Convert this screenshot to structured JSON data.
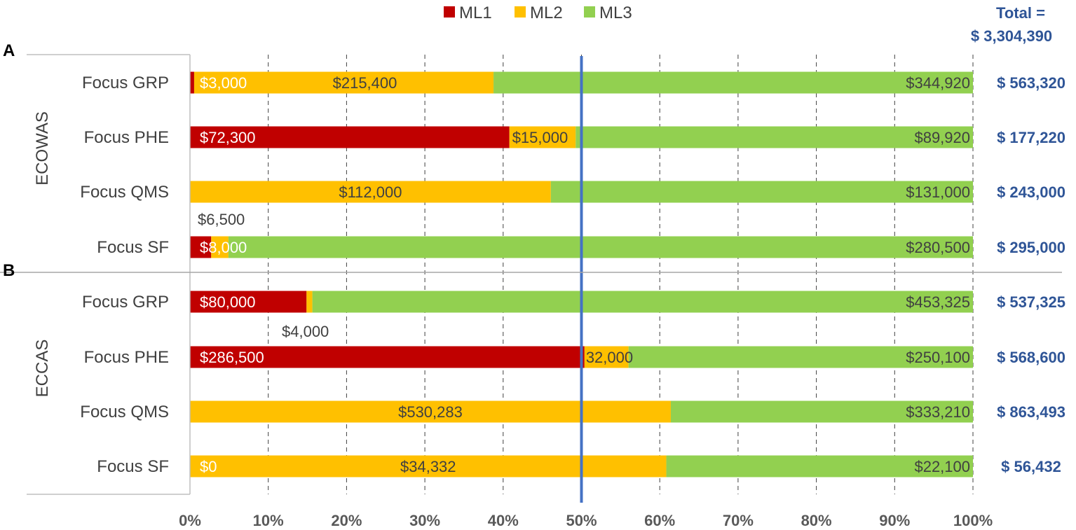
{
  "chart_data": {
    "type": "bar",
    "orientation": "horizontal",
    "stacking": "percent",
    "colors": {
      "ML1": "#c00000",
      "ML2": "#ffc000",
      "ML3": "#92d050",
      "reference_line": "#4472c4",
      "totals": "#2f5597"
    },
    "legend": {
      "position": "top",
      "entries": [
        "ML1",
        "ML2",
        "ML3"
      ]
    },
    "series_names": [
      "ML1",
      "ML2",
      "ML3"
    ],
    "xlim": [
      0,
      100
    ],
    "x_ticks": [
      "0%",
      "10%",
      "20%",
      "30%",
      "40%",
      "50%",
      "60%",
      "70%",
      "80%",
      "90%",
      "100%"
    ],
    "grid": "vertical-dashed",
    "reference_line_at": 50,
    "total_header": [
      "Total =",
      "$ 3,304,390"
    ],
    "panels": [
      {
        "letter": "A",
        "group": "ECOWAS",
        "rows": [
          {
            "category": "Focus GRP",
            "values": [
              3000,
              215400,
              344920
            ],
            "labels": [
              "$3,000",
              "$215,400",
              "$344,920"
            ],
            "total": "$ 563,320"
          },
          {
            "category": "Focus PHE",
            "values": [
              72300,
              15000,
              89920
            ],
            "labels": [
              "$72,300",
              "$15,000",
              "$89,920"
            ],
            "total": "$ 177,220"
          },
          {
            "category": "Focus QMS",
            "values": [
              0,
              112000,
              131000
            ],
            "labels": [
              "",
              "$112,000",
              "$131,000"
            ],
            "total": "$ 243,000"
          },
          {
            "category": "Focus SF",
            "values": [
              8000,
              6500,
              280500
            ],
            "labels": [
              "$8,000",
              "$6,500",
              "$280,500"
            ],
            "total": "$ 295,000"
          }
        ]
      },
      {
        "letter": "B",
        "group": "ECCAS",
        "rows": [
          {
            "category": "Focus GRP",
            "values": [
              80000,
              4000,
              453325
            ],
            "labels": [
              "$80,000",
              "$4,000",
              "$453,325"
            ],
            "total": "$ 537,325"
          },
          {
            "category": "Focus PHE",
            "values": [
              286500,
              32000,
              250100
            ],
            "labels": [
              "$286,500",
              "32,000",
              "$250,100"
            ],
            "total": "$ 568,600"
          },
          {
            "category": "Focus QMS",
            "values": [
              0,
              530283,
              333210
            ],
            "labels": [
              "",
              "$530,283",
              "$333,210"
            ],
            "total": "$ 863,493"
          },
          {
            "category": "Focus SF",
            "values": [
              0,
              34332,
              22100
            ],
            "labels": [
              "$0",
              "$34,332",
              "$22,100"
            ],
            "total": "$ 56,432"
          }
        ]
      }
    ]
  }
}
